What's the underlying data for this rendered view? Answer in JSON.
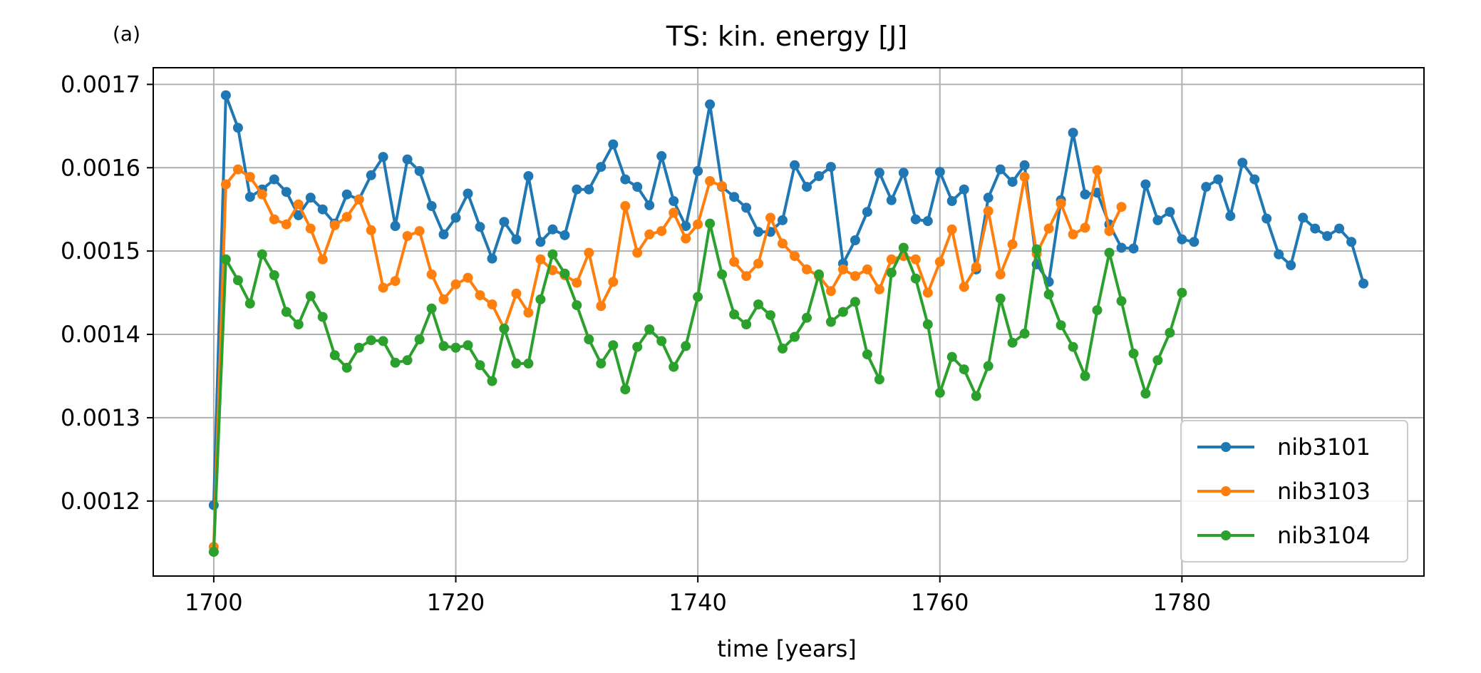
{
  "chart_data": {
    "type": "line",
    "panel_label": "(a)",
    "title": "TS: kin. energy [J]",
    "xlabel": "time [years]",
    "ylabel": "",
    "xlim": [
      1695,
      1800
    ],
    "ylim": [
      0.00111,
      0.00172
    ],
    "xticks": [
      1700,
      1720,
      1740,
      1760,
      1780
    ],
    "yticks": [
      0.0012,
      0.0013,
      0.0014,
      0.0015,
      0.0016,
      0.0017
    ],
    "ytick_labels": [
      "0.0012",
      "0.0013",
      "0.0014",
      "0.0015",
      "0.0016",
      "0.0017"
    ],
    "grid": true,
    "legend_position": "lower-right",
    "markers": "circle",
    "series": [
      {
        "name": "nib3101",
        "color": "#1f77b4",
        "x_start": 1700,
        "values": [
          0.001195,
          0.001687,
          0.001648,
          0.001565,
          0.001574,
          0.001586,
          0.001571,
          0.001543,
          0.001564,
          0.00155,
          0.001533,
          0.001568,
          0.001562,
          0.001591,
          0.001613,
          0.00153,
          0.00161,
          0.001596,
          0.001554,
          0.00152,
          0.00154,
          0.001569,
          0.001529,
          0.001491,
          0.001535,
          0.001514,
          0.00159,
          0.001511,
          0.001526,
          0.001519,
          0.001574,
          0.001574,
          0.001601,
          0.001628,
          0.001586,
          0.001577,
          0.001555,
          0.001614,
          0.00156,
          0.00153,
          0.001596,
          0.001676,
          0.001577,
          0.001565,
          0.001552,
          0.001523,
          0.001523,
          0.001537,
          0.001603,
          0.001577,
          0.00159,
          0.001601,
          0.001485,
          0.001513,
          0.001547,
          0.001594,
          0.001561,
          0.001594,
          0.001538,
          0.001536,
          0.001595,
          0.00156,
          0.001574,
          0.001478,
          0.001564,
          0.001598,
          0.001583,
          0.001603,
          0.001484,
          0.001463,
          0.001561,
          0.001642,
          0.001568,
          0.00157,
          0.001532,
          0.001504,
          0.001503,
          0.00158,
          0.001537,
          0.001547,
          0.001514,
          0.001511,
          0.001577,
          0.001586,
          0.001542,
          0.001606,
          0.001586,
          0.001539,
          0.001496,
          0.001483,
          0.00154,
          0.001527,
          0.001518,
          0.001527,
          0.001511,
          0.001461
        ]
      },
      {
        "name": "nib3103",
        "color": "#ff7f0e",
        "x_start": 1700,
        "values": [
          0.001145,
          0.00158,
          0.001598,
          0.001589,
          0.001568,
          0.001538,
          0.001532,
          0.001556,
          0.001527,
          0.00149,
          0.001531,
          0.001541,
          0.001562,
          0.001525,
          0.001456,
          0.001464,
          0.001518,
          0.001524,
          0.001472,
          0.001442,
          0.00146,
          0.001468,
          0.001447,
          0.001436,
          0.001407,
          0.001449,
          0.001426,
          0.00149,
          0.001477,
          0.001471,
          0.001462,
          0.001498,
          0.001434,
          0.001463,
          0.001554,
          0.001498,
          0.00152,
          0.001524,
          0.001546,
          0.001515,
          0.001532,
          0.001584,
          0.001578,
          0.001487,
          0.00147,
          0.001485,
          0.00154,
          0.001509,
          0.001494,
          0.001478,
          0.00147,
          0.001452,
          0.001478,
          0.00147,
          0.001478,
          0.001454,
          0.00149,
          0.001494,
          0.00149,
          0.00145,
          0.001487,
          0.001526,
          0.001457,
          0.001481,
          0.001548,
          0.001472,
          0.001508,
          0.001589,
          0.001497,
          0.001527,
          0.001557,
          0.00152,
          0.001528,
          0.001597,
          0.001524,
          0.001553
        ]
      },
      {
        "name": "nib3104",
        "color": "#2ca02c",
        "x_start": 1700,
        "values": [
          0.001139,
          0.00149,
          0.001465,
          0.001437,
          0.001496,
          0.001471,
          0.001427,
          0.001412,
          0.001446,
          0.001421,
          0.001375,
          0.00136,
          0.001384,
          0.001393,
          0.001392,
          0.001366,
          0.001369,
          0.001394,
          0.001431,
          0.001386,
          0.001384,
          0.001387,
          0.001363,
          0.001344,
          0.001407,
          0.001365,
          0.001365,
          0.001442,
          0.001496,
          0.001473,
          0.001435,
          0.001394,
          0.001365,
          0.001387,
          0.001334,
          0.001385,
          0.001406,
          0.001392,
          0.001361,
          0.001386,
          0.001445,
          0.001533,
          0.001472,
          0.001424,
          0.001412,
          0.001436,
          0.001423,
          0.001383,
          0.001397,
          0.00142,
          0.001472,
          0.001415,
          0.001427,
          0.001439,
          0.001376,
          0.001346,
          0.001474,
          0.001504,
          0.001467,
          0.001412,
          0.00133,
          0.001373,
          0.001358,
          0.001326,
          0.001362,
          0.001443,
          0.00139,
          0.001401,
          0.001502,
          0.001448,
          0.001411,
          0.001385,
          0.00135,
          0.001429,
          0.001498,
          0.00144,
          0.001377,
          0.001329,
          0.001369,
          0.001402,
          0.00145
        ]
      }
    ]
  }
}
